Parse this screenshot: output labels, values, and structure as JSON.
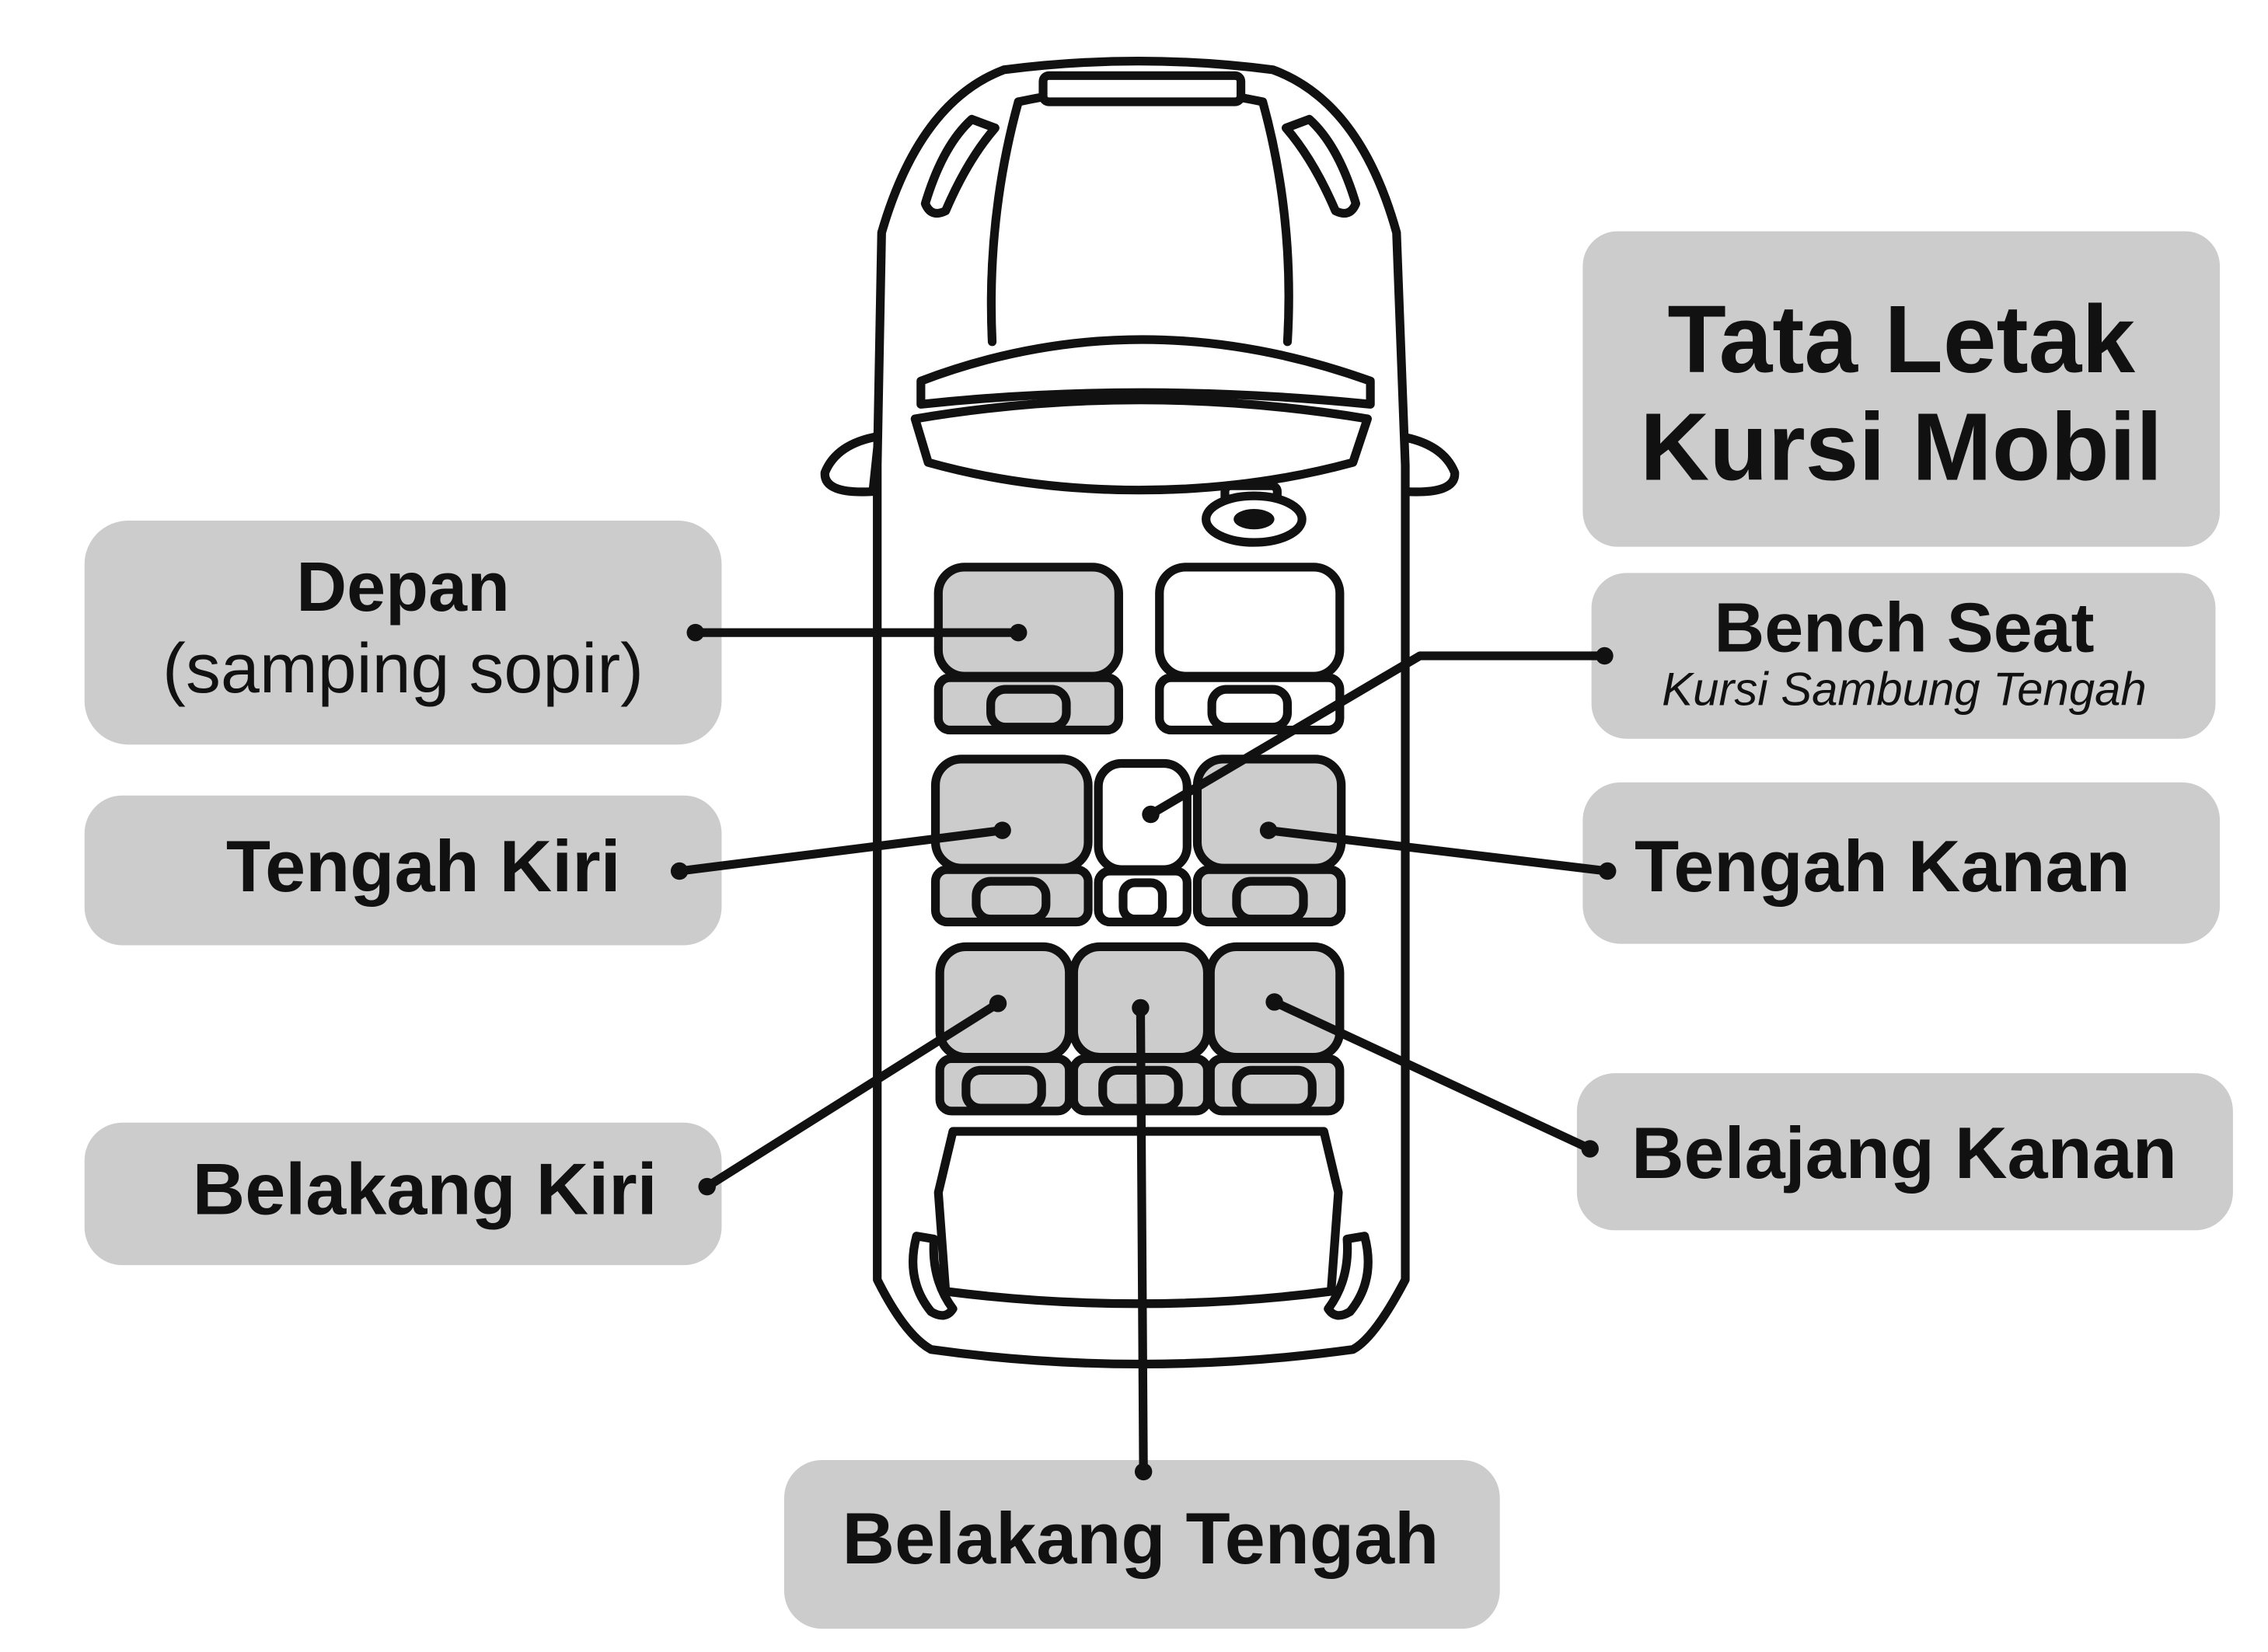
{
  "title": {
    "line1": "Tata Letak",
    "line2": "Kursi Mobil"
  },
  "labels": {
    "depan": {
      "line1": "Depan",
      "line2": "(samping sopir)"
    },
    "bench_seat": {
      "line1": "Bench Seat",
      "line2": "Kursi Sambung Tengah"
    },
    "tengah_kiri": "Tengah Kiri",
    "tengah_kanan": "Tengah Kanan",
    "belakang_kiri": "Belakang Kiri",
    "belajang_kanan": "Belajang Kanan",
    "belakang_tengah": "Belakang Tengah"
  },
  "colors": {
    "label_box": "#cccccc",
    "highlighted_seat": "#cccccc",
    "plain_seat": "#ffffff",
    "outline": "#111111"
  }
}
